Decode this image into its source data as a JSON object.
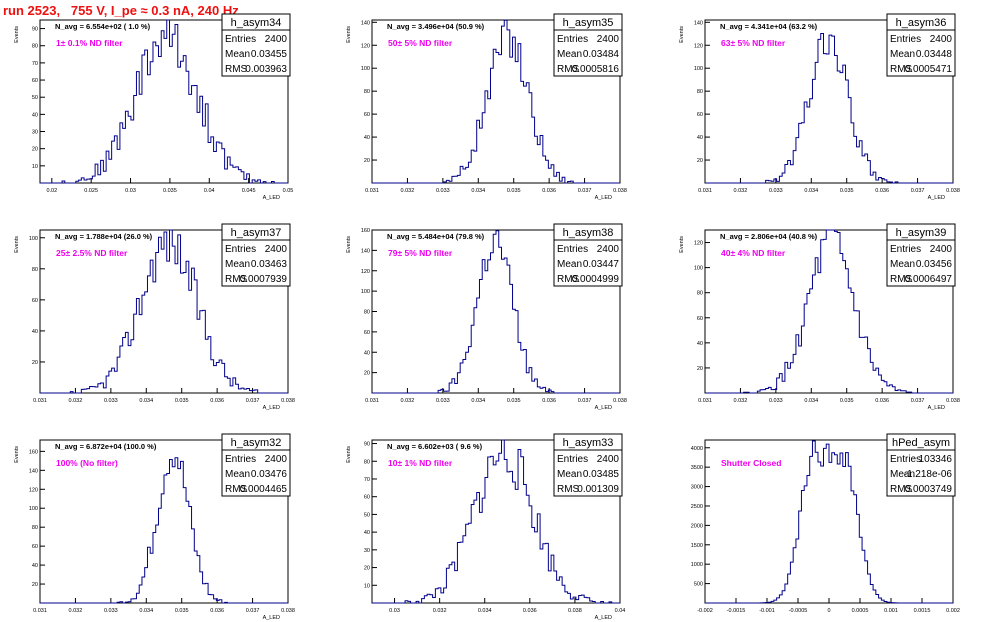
{
  "page_title": "run 2523,   755 V, I_pe ≈ 0.3 nA, 240 Hz",
  "colors": {
    "title": "#ee1111",
    "histogram": "#00008b",
    "filter_label": "#ee00ee",
    "frame": "#000000"
  },
  "chart_data": [
    {
      "type": "histogram",
      "name": "h_asym34",
      "stats": {
        "entries_label": "Entries",
        "entries": "2400",
        "mean_label": "Mean",
        "mean": "0.03455",
        "rms_label": "RMS",
        "rms": "0.003963"
      },
      "n_avg_label": "N_avg = 6.554e+02 ( 1.0 %)",
      "filter_label": "1± 0.1% ND filter",
      "ylabel": "Events",
      "xlabel": "A_LED",
      "xlim": [
        0.0185,
        0.05
      ],
      "ylim": [
        0,
        95
      ],
      "xticks": [
        0.02,
        0.025,
        0.03,
        0.035,
        0.04,
        0.045,
        0.05
      ],
      "xtick_labels": [
        "0.02",
        "0.025",
        "0.03",
        "0.035",
        "0.04",
        "0.045",
        "0.05"
      ],
      "yticks": [
        10,
        20,
        30,
        40,
        50,
        60,
        70,
        80,
        90
      ],
      "ytick_labels": [
        "10",
        "20",
        "30",
        "40",
        "50",
        "60",
        "70",
        "80",
        "90"
      ],
      "dist": {
        "mean": 0.03455,
        "sigma": 0.003963,
        "peak": 85,
        "seed": 34
      }
    },
    {
      "type": "histogram",
      "name": "h_asym35",
      "stats": {
        "entries_label": "Entries",
        "entries": "2400",
        "mean_label": "Mean",
        "mean": "0.03484",
        "rms_label": "RMS",
        "rms": "0.0005816"
      },
      "n_avg_label": "N_avg = 3.496e+04 (50.9 %)",
      "filter_label": "50± 5% ND filter",
      "ylabel": "Events",
      "xlabel": "A_LED",
      "xlim": [
        0.031,
        0.038
      ],
      "ylim": [
        0,
        142
      ],
      "xticks": [
        0.031,
        0.032,
        0.033,
        0.034,
        0.035,
        0.036,
        0.037,
        0.038
      ],
      "xtick_labels": [
        "0.031",
        "0.032",
        "0.033",
        "0.034",
        "0.035",
        "0.036",
        "0.037",
        "0.038"
      ],
      "yticks": [
        20,
        40,
        60,
        80,
        100,
        120,
        140
      ],
      "ytick_labels": [
        "20",
        "40",
        "60",
        "80",
        "100",
        "120",
        "140"
      ],
      "dist": {
        "mean": 0.03484,
        "sigma": 0.0005816,
        "peak": 128,
        "seed": 35
      }
    },
    {
      "type": "histogram",
      "name": "h_asym36",
      "stats": {
        "entries_label": "Entries",
        "entries": "2400",
        "mean_label": "Mean",
        "mean": "0.03448",
        "rms_label": "RMS",
        "rms": "0.0005471"
      },
      "n_avg_label": "N_avg = 4.341e+04 (63.2 %)",
      "filter_label": "63± 5% ND filter",
      "ylabel": "Events",
      "xlabel": "A_LED",
      "xlim": [
        0.031,
        0.038
      ],
      "ylim": [
        0,
        142
      ],
      "xticks": [
        0.031,
        0.032,
        0.033,
        0.034,
        0.035,
        0.036,
        0.037,
        0.038
      ],
      "xtick_labels": [
        "0.031",
        "0.032",
        "0.033",
        "0.034",
        "0.035",
        "0.036",
        "0.037",
        "0.038"
      ],
      "yticks": [
        20,
        40,
        60,
        80,
        100,
        120,
        140
      ],
      "ytick_labels": [
        "20",
        "40",
        "60",
        "80",
        "100",
        "120",
        "140"
      ],
      "dist": {
        "mean": 0.03448,
        "sigma": 0.0005471,
        "peak": 125,
        "seed": 36
      }
    },
    {
      "type": "histogram",
      "name": "h_asym37",
      "stats": {
        "entries_label": "Entries",
        "entries": "2400",
        "mean_label": "Mean",
        "mean": "0.03463",
        "rms_label": "RMS",
        "rms": "0.0007939"
      },
      "n_avg_label": "N_avg = 1.788e+04 (26.0 %)",
      "filter_label": "25± 2.5% ND filter",
      "ylabel": "Events",
      "xlabel": "A_LED",
      "xlim": [
        0.031,
        0.038
      ],
      "ylim": [
        0,
        105
      ],
      "xticks": [
        0.031,
        0.032,
        0.033,
        0.034,
        0.035,
        0.036,
        0.037,
        0.038
      ],
      "xtick_labels": [
        "0.031",
        "0.032",
        "0.033",
        "0.034",
        "0.035",
        "0.036",
        "0.037",
        "0.038"
      ],
      "yticks": [
        20,
        40,
        60,
        80,
        100
      ],
      "ytick_labels": [
        "20",
        "40",
        "60",
        "80",
        "100"
      ],
      "dist": {
        "mean": 0.03463,
        "sigma": 0.0007939,
        "peak": 98,
        "seed": 37
      }
    },
    {
      "type": "histogram",
      "name": "h_asym38",
      "stats": {
        "entries_label": "Entries",
        "entries": "2400",
        "mean_label": "Mean",
        "mean": "0.03447",
        "rms_label": "RMS",
        "rms": "0.0004999"
      },
      "n_avg_label": "N_avg = 5.484e+04 (79.8 %)",
      "filter_label": "79± 5% ND filter",
      "ylabel": "Events",
      "xlabel": "A_LED",
      "xlim": [
        0.031,
        0.038
      ],
      "ylim": [
        0,
        160
      ],
      "xticks": [
        0.031,
        0.032,
        0.033,
        0.034,
        0.035,
        0.036,
        0.037,
        0.038
      ],
      "xtick_labels": [
        "0.031",
        "0.032",
        "0.033",
        "0.034",
        "0.035",
        "0.036",
        "0.037",
        "0.038"
      ],
      "yticks": [
        20,
        40,
        60,
        80,
        100,
        120,
        140,
        160
      ],
      "ytick_labels": [
        "20",
        "40",
        "60",
        "80",
        "100",
        "120",
        "140",
        "160"
      ],
      "dist": {
        "mean": 0.03447,
        "sigma": 0.0004999,
        "peak": 150,
        "seed": 38
      }
    },
    {
      "type": "histogram",
      "name": "h_asym39",
      "stats": {
        "entries_label": "Entries",
        "entries": "2400",
        "mean_label": "Mean",
        "mean": "0.03456",
        "rms_label": "RMS",
        "rms": "0.0006497"
      },
      "n_avg_label": "N_avg = 2.806e+04 (40.8 %)",
      "filter_label": "40± 4% ND filter",
      "ylabel": "Events",
      "xlabel": "A_LED",
      "xlim": [
        0.031,
        0.038
      ],
      "ylim": [
        0,
        130
      ],
      "xticks": [
        0.031,
        0.032,
        0.033,
        0.034,
        0.035,
        0.036,
        0.037,
        0.038
      ],
      "xtick_labels": [
        "0.031",
        "0.032",
        "0.033",
        "0.034",
        "0.035",
        "0.036",
        "0.037",
        "0.038"
      ],
      "yticks": [
        20,
        40,
        60,
        80,
        100,
        120
      ],
      "ytick_labels": [
        "20",
        "40",
        "60",
        "80",
        "100",
        "120"
      ],
      "dist": {
        "mean": 0.03456,
        "sigma": 0.0006497,
        "peak": 118,
        "seed": 39
      }
    },
    {
      "type": "histogram",
      "name": "h_asym32",
      "stats": {
        "entries_label": "Entries",
        "entries": "2400",
        "mean_label": "Mean",
        "mean": "0.03476",
        "rms_label": "RMS",
        "rms": "0.0004465"
      },
      "n_avg_label": "N_avg = 6.872e+04 (100.0 %)",
      "filter_label": "100% (No filter)",
      "ylabel": "Events",
      "xlabel": "A_LED",
      "xlim": [
        0.031,
        0.038
      ],
      "ylim": [
        0,
        172
      ],
      "xticks": [
        0.031,
        0.032,
        0.033,
        0.034,
        0.035,
        0.036,
        0.037,
        0.038
      ],
      "xtick_labels": [
        "0.031",
        "0.032",
        "0.033",
        "0.034",
        "0.035",
        "0.036",
        "0.037",
        "0.038"
      ],
      "yticks": [
        20,
        40,
        60,
        80,
        100,
        120,
        140,
        160
      ],
      "ytick_labels": [
        "20",
        "40",
        "60",
        "80",
        "100",
        "120",
        "140",
        "160"
      ],
      "dist": {
        "mean": 0.03476,
        "sigma": 0.0004465,
        "peak": 160,
        "seed": 32
      }
    },
    {
      "type": "histogram",
      "name": "h_asym33",
      "stats": {
        "entries_label": "Entries",
        "entries": "2400",
        "mean_label": "Mean",
        "mean": "0.03485",
        "rms_label": "RMS",
        "rms": "0.001309"
      },
      "n_avg_label": "N_avg = 6.602e+03 ( 9.6 %)",
      "filter_label": "10± 1% ND filter",
      "ylabel": "Events",
      "xlabel": "A_LED",
      "xlim": [
        0.029,
        0.04
      ],
      "ylim": [
        0,
        92
      ],
      "xticks": [
        0.03,
        0.032,
        0.034,
        0.036,
        0.038,
        0.04
      ],
      "xtick_labels": [
        "0.03",
        "0.032",
        "0.034",
        "0.036",
        "0.038",
        "0.04"
      ],
      "yticks": [
        10,
        20,
        30,
        40,
        50,
        60,
        70,
        80,
        90
      ],
      "ytick_labels": [
        "10",
        "20",
        "30",
        "40",
        "50",
        "60",
        "70",
        "80",
        "90"
      ],
      "dist": {
        "mean": 0.03485,
        "sigma": 0.001309,
        "peak": 85,
        "seed": 33
      }
    },
    {
      "type": "histogram",
      "name": "hPed_asym",
      "stats": {
        "entries_label": "Entries",
        "entries": "103346",
        "mean_label": "Mean",
        "mean": "-1.218e-06",
        "rms_label": "RMS",
        "rms": "0.0003749"
      },
      "n_avg_label": "",
      "filter_label": "Shutter Closed",
      "ylabel": "",
      "xlabel": "",
      "xlim": [
        -0.002,
        0.002
      ],
      "ylim": [
        0,
        4200
      ],
      "xticks": [
        -0.002,
        -0.0015,
        -0.001,
        -0.0005,
        0,
        0.0005,
        0.001,
        0.0015,
        0.002
      ],
      "xtick_labels": [
        "-0.002",
        "-0.0015",
        "-0.001",
        "-0.0005",
        "0",
        "0.0005",
        "0.001",
        "0.0015",
        "0.002"
      ],
      "yticks": [
        500,
        1000,
        1500,
        2000,
        2500,
        3000,
        3500,
        4000
      ],
      "ytick_labels": [
        "500",
        "1000",
        "1500",
        "2000",
        "2500",
        "3000",
        "3500",
        "4000"
      ],
      "dist": {
        "bimodal": true,
        "peaks": [
          -0.00025,
          0.00025
        ],
        "sigma": 0.00022,
        "peak": 3900,
        "seed": 99
      }
    }
  ]
}
